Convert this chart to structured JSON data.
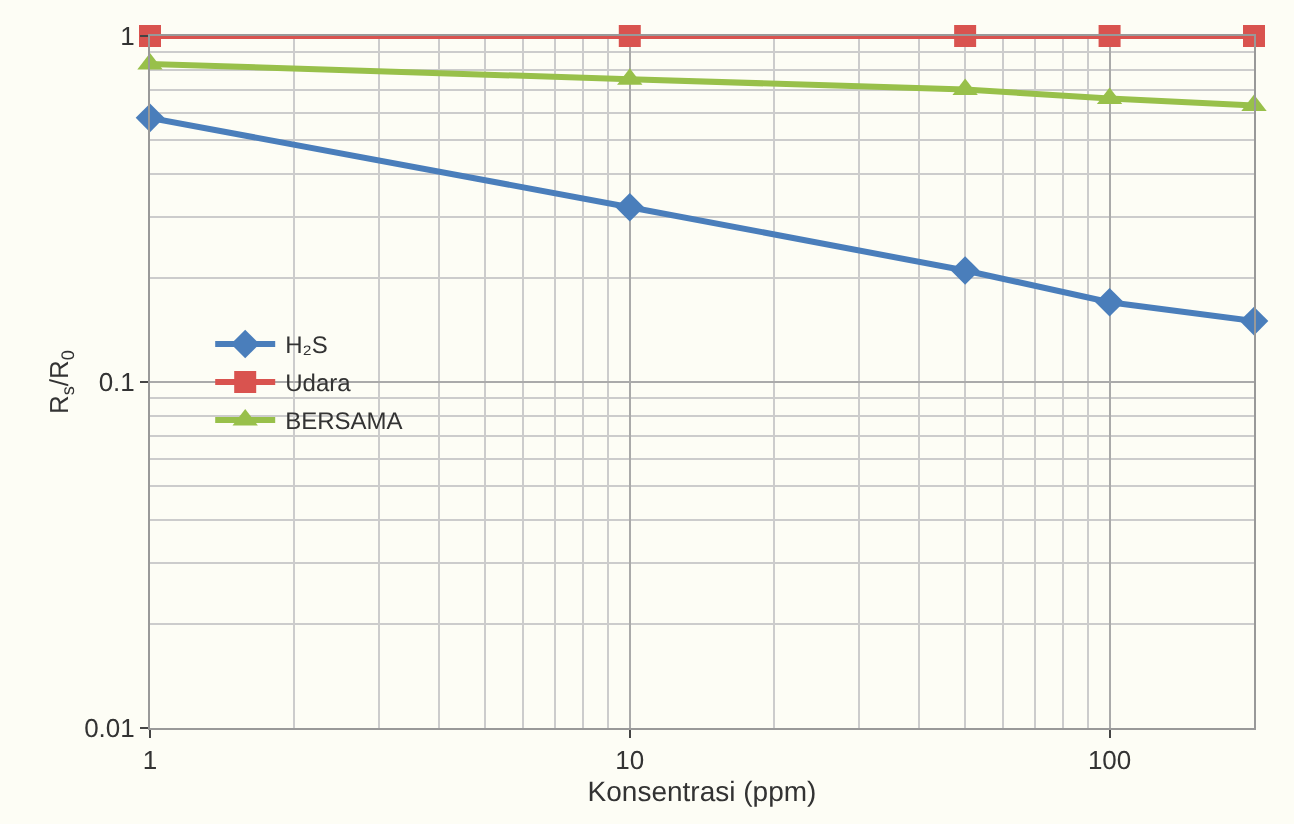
{
  "chart_data": {
    "type": "line",
    "xlabel": "Konsentrasi (ppm)",
    "ylabel": "R$_{s}$/R$_{0}$",
    "x": [
      1,
      10,
      50,
      100,
      200
    ],
    "series": [
      {
        "name": "H₂S",
        "color": "#4a7ebb",
        "marker": "diamond",
        "values": [
          0.58,
          0.32,
          0.21,
          0.17,
          0.15
        ]
      },
      {
        "name": "Udara",
        "color": "#d9534f",
        "marker": "square",
        "values": [
          1,
          1,
          1,
          1,
          1
        ]
      },
      {
        "name": "BERSAMA",
        "color": "#98c04a",
        "marker": "triangle",
        "values": [
          0.83,
          0.75,
          0.7,
          0.66,
          0.63
        ]
      }
    ],
    "log": "xy",
    "xlim": [
      1,
      200
    ],
    "ylim": [
      0.01,
      1
    ],
    "xticks": [
      1,
      10,
      100
    ],
    "yticks": [
      0.01,
      0.1,
      1
    ],
    "grid": true,
    "legend": "left"
  }
}
